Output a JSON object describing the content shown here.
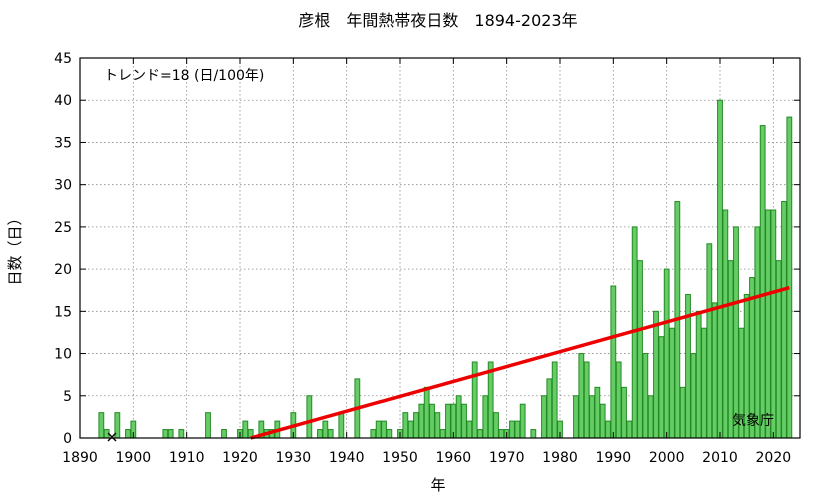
{
  "chart_data": {
    "type": "bar",
    "title": "彦根　年間熱帯夜日数　1894-2023年",
    "xlabel": "年",
    "ylabel": "日数（日）",
    "trend_label": "トレンド=18 (日/100年)",
    "source": "気象庁",
    "xlim": [
      1890,
      2025
    ],
    "ylim": [
      0,
      45
    ],
    "x_ticks": [
      1890,
      1900,
      1910,
      1920,
      1930,
      1940,
      1950,
      1960,
      1970,
      1980,
      1990,
      2000,
      2010,
      2020
    ],
    "y_ticks": [
      0,
      5,
      10,
      15,
      20,
      25,
      30,
      35,
      40,
      45
    ],
    "grid": true,
    "bar_color": "#66cc66",
    "bar_edge_color": "#228b22",
    "trend_color": "#ee0000",
    "missing_marker_years": [
      1896
    ],
    "trend_line": {
      "x": [
        1922,
        2023
      ],
      "y": [
        0,
        17.8
      ]
    },
    "series": [
      {
        "x": [
          1894,
          1895,
          1896,
          1897,
          1898,
          1899,
          1900,
          1901,
          1902,
          1903,
          1904,
          1905,
          1906,
          1907,
          1908,
          1909,
          1910,
          1911,
          1912,
          1913,
          1914,
          1915,
          1916,
          1917,
          1918,
          1919,
          1920,
          1921,
          1922,
          1923,
          1924,
          1925,
          1926,
          1927,
          1928,
          1929,
          1930,
          1931,
          1932,
          1933,
          1934,
          1935,
          1936,
          1937,
          1938,
          1939,
          1940,
          1941,
          1942,
          1943,
          1944,
          1945,
          1946,
          1947,
          1948,
          1949,
          1950,
          1951,
          1952,
          1953,
          1954,
          1955,
          1956,
          1957,
          1958,
          1959,
          1960,
          1961,
          1962,
          1963,
          1964,
          1965,
          1966,
          1967,
          1968,
          1969,
          1970,
          1971,
          1972,
          1973,
          1974,
          1975,
          1976,
          1977,
          1978,
          1979,
          1980,
          1981,
          1982,
          1983,
          1984,
          1985,
          1986,
          1987,
          1988,
          1989,
          1990,
          1991,
          1992,
          1993,
          1994,
          1995,
          1996,
          1997,
          1998,
          1999,
          2000,
          2001,
          2002,
          2003,
          2004,
          2005,
          2006,
          2007,
          2008,
          2009,
          2010,
          2011,
          2012,
          2013,
          2014,
          2015,
          2016,
          2017,
          2018,
          2019,
          2020,
          2021,
          2022,
          2023
        ],
        "values": [
          3,
          1,
          0,
          3,
          0,
          1,
          2,
          0,
          0,
          0,
          0,
          0,
          1,
          1,
          0,
          1,
          0,
          0,
          0,
          0,
          3,
          0,
          0,
          1,
          0,
          0,
          1,
          2,
          1,
          0,
          2,
          1,
          1,
          2,
          0,
          0,
          3,
          0,
          0,
          5,
          0,
          1,
          2,
          1,
          0,
          3,
          0,
          0,
          7,
          0,
          0,
          1,
          2,
          2,
          1,
          0,
          1,
          3,
          2,
          3,
          4,
          6,
          4,
          3,
          1,
          4,
          4,
          5,
          4,
          2,
          9,
          1,
          5,
          9,
          3,
          1,
          1,
          2,
          2,
          4,
          0,
          1,
          0,
          5,
          7,
          9,
          2,
          0,
          0,
          5,
          10,
          9,
          5,
          6,
          4,
          2,
          18,
          9,
          6,
          2,
          25,
          21,
          10,
          5,
          15,
          12,
          20,
          13,
          28,
          6,
          17,
          10,
          15,
          13,
          23,
          16,
          40,
          27,
          21,
          25,
          13,
          17,
          19,
          25,
          37,
          27,
          27,
          21,
          28,
          38
        ]
      }
    ]
  }
}
